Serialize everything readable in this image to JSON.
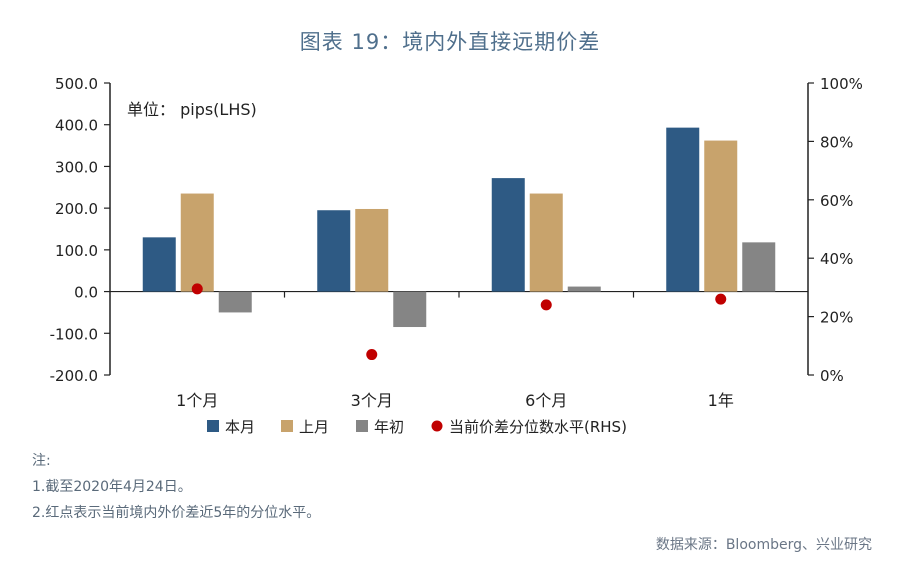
{
  "title": "图表 19：境内外直接远期价差",
  "chart_data": {
    "type": "bar",
    "title": "图表 19：境内外直接远期价差",
    "unit_label": "单位： pips(LHS)",
    "categories": [
      "1个月",
      "3个月",
      "6个月",
      "1年"
    ],
    "series": [
      {
        "name": "本月",
        "color": "#2e5a84",
        "axis": "left",
        "values": [
          130,
          195,
          272,
          393
        ]
      },
      {
        "name": "上月",
        "color": "#c8a36c",
        "axis": "left",
        "values": [
          235,
          198,
          235,
          362
        ]
      },
      {
        "name": "年初",
        "color": "#858585",
        "axis": "left",
        "values": [
          -50,
          -85,
          12,
          118
        ]
      }
    ],
    "scatter_series": {
      "name": "当前价差分位数水平(RHS)",
      "color": "#c00000",
      "axis": "right",
      "values": [
        29.5,
        7,
        24,
        26
      ]
    },
    "left_axis": {
      "ylim": [
        -200,
        500
      ],
      "ticks": [
        "-200.0",
        "-100.0",
        "0.0",
        "100.0",
        "200.0",
        "300.0",
        "400.0",
        "500.0"
      ]
    },
    "right_axis": {
      "ylim": [
        0,
        100
      ],
      "ticks": [
        "0%",
        "20%",
        "40%",
        "60%",
        "80%",
        "100%"
      ]
    },
    "legend": [
      "本月",
      "上月",
      "年初",
      "当前价差分位数水平(RHS)"
    ],
    "legend_position": "bottom"
  },
  "notes": {
    "heading": "注:",
    "line1": "1.截至2020年4月24日。",
    "line2": "2.红点表示当前境内外价差近5年的分位水平。"
  },
  "source": "数据来源：Bloomberg、兴业研究"
}
